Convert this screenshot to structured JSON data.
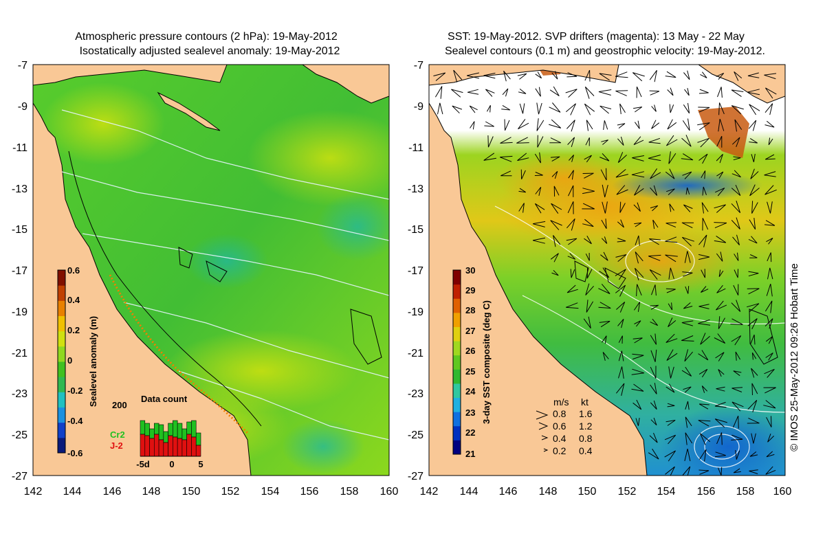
{
  "left_panel": {
    "title_line1": "Atmospheric pressure contours (2 hPa): 19-May-2012",
    "title_line2": "Isostatically adjusted sealevel anomaly: 19-May-2012",
    "colorbar": {
      "label": "Sealevel anomaly (m)",
      "ticks": [
        "0.6",
        "0.4",
        "0.2",
        "0",
        "-0.2",
        "-0.4",
        "-0.6"
      ],
      "min": -0.6,
      "max": 0.6,
      "colors": [
        "#0a1a7a",
        "#1040c8",
        "#1a90e0",
        "#20c0c0",
        "#30b850",
        "#40c020",
        "#90d820",
        "#d0e010",
        "#f0c000",
        "#e88000",
        "#c04000",
        "#801000"
      ]
    },
    "inset": {
      "title": "Data count",
      "y_max_label": "200",
      "x_ticks": [
        "-5d",
        "0",
        "5"
      ],
      "legend": [
        {
          "name": "Cr2",
          "color": "#20c020"
        },
        {
          "name": "J-2",
          "color": "#e01010"
        }
      ],
      "bars_total": [
        130,
        120,
        100,
        120,
        115,
        90,
        120,
        130,
        120,
        100,
        125,
        130,
        85
      ],
      "bars_j2": [
        80,
        75,
        65,
        80,
        60,
        50,
        75,
        70,
        65,
        60,
        80,
        70,
        40
      ],
      "y_scale_max": 200
    }
  },
  "right_panel": {
    "title_line1": "SST: 19-May-2012. SVP drifters (magenta): 13 May - 22 May",
    "title_line2": "Sealevel contours (0.1 m) and geostrophic velocity: 19-May-2012.",
    "colorbar": {
      "label": "3-day SST composite (deg C)",
      "ticks": [
        "30",
        "29",
        "28",
        "27",
        "26",
        "25",
        "24",
        "23",
        "22",
        "21"
      ],
      "min": 21,
      "max": 30,
      "colors": [
        "#000080",
        "#0030c0",
        "#1070e0",
        "#20b0e0",
        "#30c8a0",
        "#30b830",
        "#60c820",
        "#a0d820",
        "#e0d010",
        "#f0a000",
        "#e06000",
        "#c02000",
        "#800000"
      ]
    },
    "velocity_legend": {
      "header_ms": "m/s",
      "header_kt": "kt",
      "rows": [
        {
          "ms": "0.8",
          "kt": "1.6"
        },
        {
          "ms": "0.6",
          "kt": "1.2"
        },
        {
          "ms": "0.4",
          "kt": "0.8"
        },
        {
          "ms": "0.2",
          "kt": "0.4"
        }
      ]
    }
  },
  "axes": {
    "y_ticks": [
      "-7",
      "-9",
      "-11",
      "-13",
      "-15",
      "-17",
      "-19",
      "-21",
      "-23",
      "-25",
      "-27"
    ],
    "x_ticks": [
      "142",
      "144",
      "146",
      "148",
      "150",
      "152",
      "154",
      "156",
      "158",
      "160"
    ],
    "lon_range": [
      142,
      160
    ],
    "lat_range": [
      -7,
      -27
    ]
  },
  "credit": "© IMOS 25-May-2012 09:26 Hobart Time",
  "colors": {
    "land": "#f9c896",
    "ocean_green": "#4cc832",
    "ocean_yellow": "#a8e01e",
    "cloud": "#ffffff"
  }
}
